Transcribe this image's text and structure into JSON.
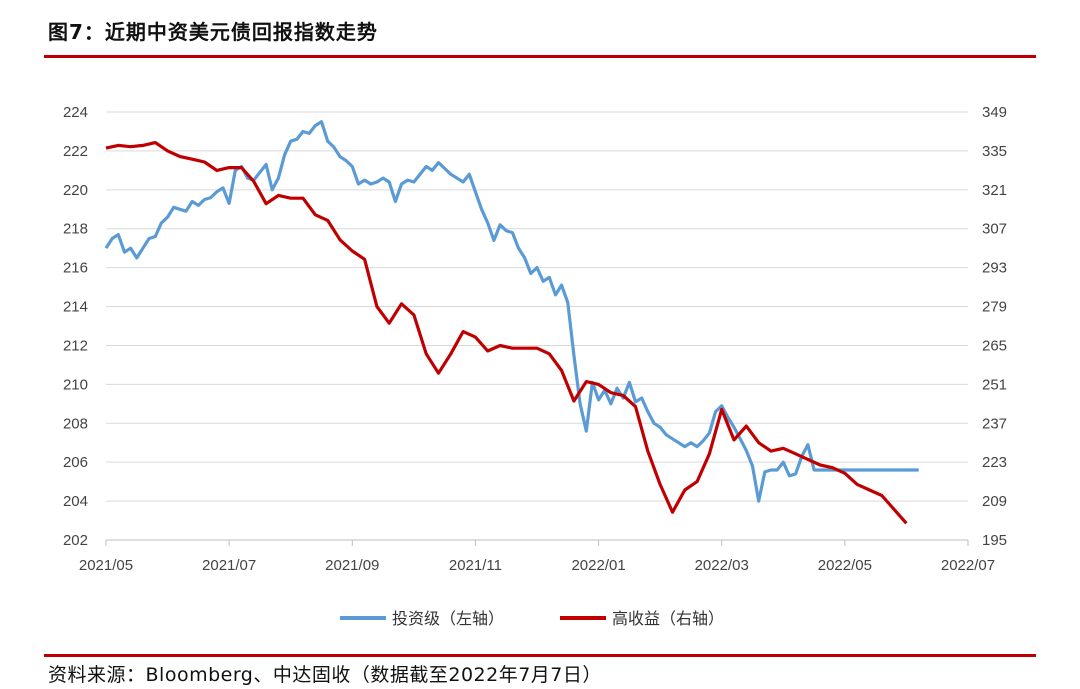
{
  "header": {
    "title": "图7：近期中资美元债回报指数走势"
  },
  "footer": {
    "source": "资料来源：Bloomberg、中达固收（数据截至2022年7月7日）"
  },
  "colors": {
    "accent_rule": "#c00000",
    "grid": "#d9d9d9"
  },
  "chart_data": {
    "type": "line",
    "title": "",
    "xlabel": "",
    "ylabel": "",
    "x_ticks": [
      "2021/05",
      "2021/07",
      "2021/09",
      "2021/11",
      "2022/01",
      "2022/03",
      "2022/05",
      "2022/07"
    ],
    "x_range": [
      "2021/05",
      "2022/07"
    ],
    "ylim_left": [
      202,
      224
    ],
    "yticks_left": [
      202,
      204,
      206,
      208,
      210,
      212,
      214,
      216,
      218,
      220,
      222,
      224
    ],
    "ylim_right": [
      195,
      349
    ],
    "yticks_right": [
      195,
      209,
      223,
      237,
      251,
      265,
      279,
      293,
      307,
      321,
      335,
      349
    ],
    "grid": {
      "horizontal": true,
      "vertical": false
    },
    "legend_position": "bottom-center",
    "series": [
      {
        "name": "投资级（左轴）",
        "axis": "left",
        "color": "#5b9bd5",
        "x": [
          0,
          0.1,
          0.2,
          0.3,
          0.4,
          0.5,
          0.6,
          0.7,
          0.8,
          0.9,
          1.0,
          1.1,
          1.2,
          1.3,
          1.4,
          1.5,
          1.6,
          1.7,
          1.8,
          1.9,
          2.0,
          2.1,
          2.2,
          2.3,
          2.4,
          2.5,
          2.6,
          2.7,
          2.8,
          2.9,
          3.0,
          3.1,
          3.2,
          3.3,
          3.4,
          3.5,
          3.6,
          3.7,
          3.8,
          3.9,
          4.0,
          4.1,
          4.2,
          4.3,
          4.4,
          4.5,
          4.6,
          4.7,
          4.8,
          4.9,
          5.0,
          5.1,
          5.2,
          5.3,
          5.4,
          5.5,
          5.6,
          5.7,
          5.8,
          5.9,
          6.0,
          6.1,
          6.2,
          6.3,
          6.4,
          6.5,
          6.6,
          6.7,
          6.8,
          6.9,
          7.0,
          7.1,
          7.2,
          7.3,
          7.4,
          7.5,
          7.6,
          7.7,
          7.8,
          7.9,
          8.0,
          8.1,
          8.2,
          8.3,
          8.4,
          8.5,
          8.6,
          8.7,
          8.8,
          8.9,
          9.0,
          9.1,
          9.2,
          9.3,
          9.4,
          9.5,
          9.6,
          9.7,
          9.8,
          9.9,
          10.0,
          10.1,
          10.2,
          10.3,
          10.4,
          10.5,
          10.6,
          10.7,
          10.8,
          10.9,
          11.0,
          11.1,
          11.2,
          11.3,
          11.4,
          11.5,
          11.6,
          11.7,
          11.8,
          11.9,
          12.0,
          12.1,
          12.2,
          12.3,
          12.4,
          12.5,
          12.6,
          12.7,
          12.8,
          12.9,
          13.0,
          13.1,
          13.2
        ],
        "values": [
          217.0,
          217.5,
          217.7,
          216.8,
          217.0,
          216.5,
          217.0,
          217.5,
          217.6,
          218.3,
          218.6,
          219.1,
          219.0,
          218.9,
          219.4,
          219.2,
          219.5,
          219.6,
          219.9,
          220.1,
          219.3,
          221.0,
          221.2,
          220.6,
          220.5,
          220.9,
          221.3,
          220.0,
          220.6,
          221.8,
          222.5,
          222.6,
          223.0,
          222.9,
          223.3,
          223.5,
          222.5,
          222.2,
          221.7,
          221.5,
          221.2,
          220.3,
          220.5,
          220.3,
          220.4,
          220.6,
          220.4,
          219.4,
          220.3,
          220.5,
          220.4,
          220.8,
          221.2,
          221.0,
          221.4,
          221.1,
          220.8,
          220.6,
          220.4,
          220.8,
          219.9,
          219.0,
          218.3,
          217.4,
          218.2,
          217.9,
          217.8,
          217.0,
          216.5,
          215.7,
          216.0,
          215.3,
          215.5,
          214.6,
          215.1,
          214.2,
          211.5,
          209.0,
          207.6,
          210.1,
          209.2,
          209.7,
          209.0,
          209.8,
          209.3,
          210.1,
          209.1,
          209.3,
          208.6,
          208.0,
          207.8,
          207.4,
          207.2,
          207.0,
          206.8,
          207.0,
          206.8,
          207.1,
          207.5,
          208.6,
          208.9,
          208.3,
          207.8,
          207.2,
          206.6,
          205.8,
          204.0,
          205.5,
          205.6,
          205.6,
          206.0,
          205.3,
          205.4,
          206.3,
          206.9,
          205.6,
          205.6,
          205.6,
          205.6,
          205.6,
          205.6,
          205.6,
          205.6,
          205.6,
          205.6,
          205.6,
          205.6,
          205.6,
          205.6,
          205.6,
          205.6,
          205.6,
          205.6
        ]
      },
      {
        "name": "高收益（右轴）",
        "axis": "right",
        "color": "#c00000",
        "x": [
          0,
          0.2,
          0.4,
          0.6,
          0.8,
          1.0,
          1.2,
          1.4,
          1.6,
          1.8,
          2.0,
          2.2,
          2.4,
          2.6,
          2.8,
          3.0,
          3.2,
          3.4,
          3.6,
          3.8,
          4.0,
          4.2,
          4.4,
          4.6,
          4.8,
          5.0,
          5.2,
          5.4,
          5.6,
          5.8,
          6.0,
          6.2,
          6.4,
          6.6,
          6.8,
          7.0,
          7.2,
          7.4,
          7.6,
          7.8,
          8.0,
          8.2,
          8.4,
          8.6,
          8.8,
          9.0,
          9.2,
          9.4,
          9.6,
          9.8,
          10.0,
          10.2,
          10.4,
          10.6,
          10.8,
          11.0,
          11.2,
          11.4,
          11.6,
          11.8,
          12.0,
          12.2,
          12.4,
          12.6,
          12.8,
          13.0
        ],
        "values": [
          336,
          337,
          336.5,
          337,
          338,
          335,
          333,
          332,
          331,
          328,
          329,
          329,
          324,
          316,
          319,
          318,
          318,
          312,
          310,
          303,
          299,
          296,
          279,
          273,
          280,
          276,
          262,
          255,
          262,
          270,
          268,
          263,
          265,
          264,
          264,
          264,
          262,
          256,
          245,
          252,
          251,
          248,
          247,
          243,
          227,
          215,
          205,
          213,
          216,
          226,
          242,
          231,
          236,
          230,
          227,
          228,
          226,
          224,
          222,
          221,
          219,
          215,
          213,
          211,
          206,
          201
        ]
      }
    ]
  }
}
